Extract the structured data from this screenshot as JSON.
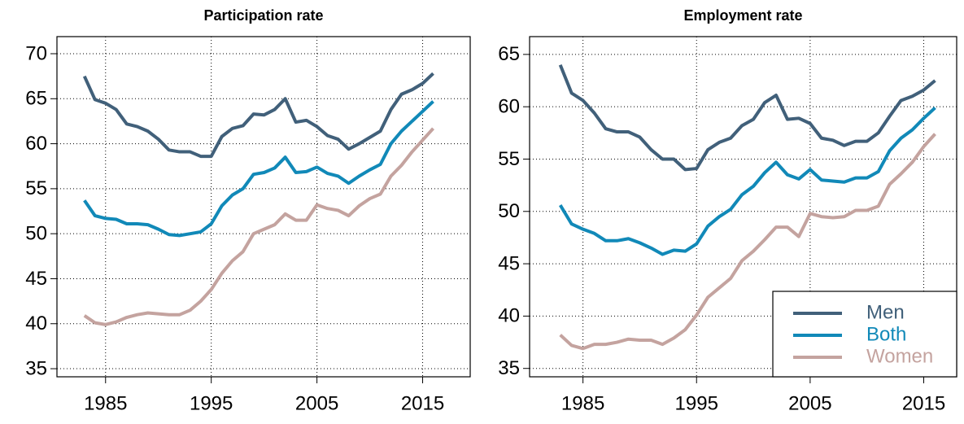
{
  "chart_data": [
    {
      "type": "line",
      "title": "Participation rate",
      "x": [
        1983,
        1984,
        1985,
        1986,
        1987,
        1988,
        1989,
        1990,
        1991,
        1992,
        1993,
        1994,
        1995,
        1996,
        1997,
        1998,
        1999,
        2000,
        2001,
        2002,
        2003,
        2004,
        2005,
        2006,
        2007,
        2008,
        2009,
        2010,
        2011,
        2012,
        2013,
        2014,
        2015,
        2016
      ],
      "series": [
        {
          "name": "Men",
          "color": "#41607a",
          "values": [
            67.5,
            64.9,
            64.5,
            63.8,
            62.2,
            61.9,
            61.4,
            60.5,
            59.3,
            59.1,
            59.1,
            58.6,
            58.6,
            60.8,
            61.7,
            62.0,
            63.3,
            63.2,
            63.8,
            65.0,
            62.4,
            62.6,
            61.9,
            60.9,
            60.5,
            59.4,
            60.0,
            60.7,
            61.4,
            63.8,
            65.5,
            66.0,
            66.7,
            67.8
          ]
        },
        {
          "name": "Both",
          "color": "#1189b8",
          "values": [
            53.7,
            52.0,
            51.7,
            51.6,
            51.1,
            51.1,
            51.0,
            50.5,
            49.9,
            49.8,
            50.0,
            50.2,
            51.1,
            53.1,
            54.3,
            55.0,
            56.6,
            56.8,
            57.3,
            58.5,
            56.8,
            56.9,
            57.4,
            56.7,
            56.4,
            55.6,
            56.4,
            57.1,
            57.7,
            60.0,
            61.4,
            62.5,
            63.6,
            64.7
          ]
        },
        {
          "name": "Women",
          "color": "#c4a39f",
          "values": [
            40.9,
            40.1,
            39.9,
            40.2,
            40.7,
            41.0,
            41.2,
            41.1,
            41.0,
            41.0,
            41.5,
            42.5,
            43.8,
            45.6,
            47.0,
            48.0,
            50.0,
            50.5,
            51.0,
            52.2,
            51.5,
            51.5,
            53.2,
            52.8,
            52.6,
            52.0,
            53.1,
            53.9,
            54.4,
            56.4,
            57.6,
            59.1,
            60.4,
            61.7
          ]
        }
      ],
      "xlim": [
        1980.4,
        2019.5
      ],
      "xticks": [
        1985,
        1995,
        2005,
        2015
      ],
      "ylim": [
        34.1,
        71.9
      ],
      "yticks": [
        35,
        40,
        45,
        50,
        55,
        60,
        65,
        70
      ],
      "grid": true
    },
    {
      "type": "line",
      "title": "Employment rate",
      "x": [
        1983,
        1984,
        1985,
        1986,
        1987,
        1988,
        1989,
        1990,
        1991,
        1992,
        1993,
        1994,
        1995,
        1996,
        1997,
        1998,
        1999,
        2000,
        2001,
        2002,
        2003,
        2004,
        2005,
        2006,
        2007,
        2008,
        2009,
        2010,
        2011,
        2012,
        2013,
        2014,
        2015,
        2016
      ],
      "series": [
        {
          "name": "Men",
          "color": "#41607a",
          "values": [
            64.0,
            61.3,
            60.6,
            59.4,
            57.9,
            57.6,
            57.6,
            57.1,
            55.9,
            55.0,
            55.0,
            54.0,
            54.1,
            55.9,
            56.6,
            57.0,
            58.2,
            58.8,
            60.4,
            61.1,
            58.8,
            58.9,
            58.4,
            57.0,
            56.8,
            56.3,
            56.7,
            56.7,
            57.5,
            59.1,
            60.6,
            61.0,
            61.6,
            62.5
          ]
        },
        {
          "name": "Both",
          "color": "#1189b8",
          "values": [
            50.6,
            48.8,
            48.3,
            47.9,
            47.2,
            47.2,
            47.4,
            47.0,
            46.5,
            45.9,
            46.3,
            46.2,
            46.9,
            48.6,
            49.5,
            50.2,
            51.6,
            52.4,
            53.7,
            54.7,
            53.5,
            53.1,
            54.0,
            53.0,
            52.9,
            52.8,
            53.2,
            53.2,
            53.8,
            55.8,
            57.0,
            57.8,
            58.9,
            59.9
          ]
        },
        {
          "name": "Women",
          "color": "#c4a39f",
          "values": [
            38.2,
            37.2,
            36.9,
            37.3,
            37.3,
            37.5,
            37.8,
            37.7,
            37.7,
            37.3,
            37.9,
            38.7,
            40.1,
            41.8,
            42.7,
            43.6,
            45.3,
            46.2,
            47.3,
            48.5,
            48.5,
            47.6,
            49.8,
            49.5,
            49.4,
            49.5,
            50.1,
            50.1,
            50.5,
            52.6,
            53.6,
            54.7,
            56.2,
            57.4
          ]
        }
      ],
      "xlim": [
        1980.3,
        2017.9
      ],
      "xticks": [
        1985,
        1995,
        2005,
        2015
      ],
      "ylim": [
        34.2,
        66.7
      ],
      "yticks": [
        35,
        40,
        45,
        50,
        55,
        60,
        65
      ],
      "grid": true,
      "legend": "bottomright"
    }
  ]
}
